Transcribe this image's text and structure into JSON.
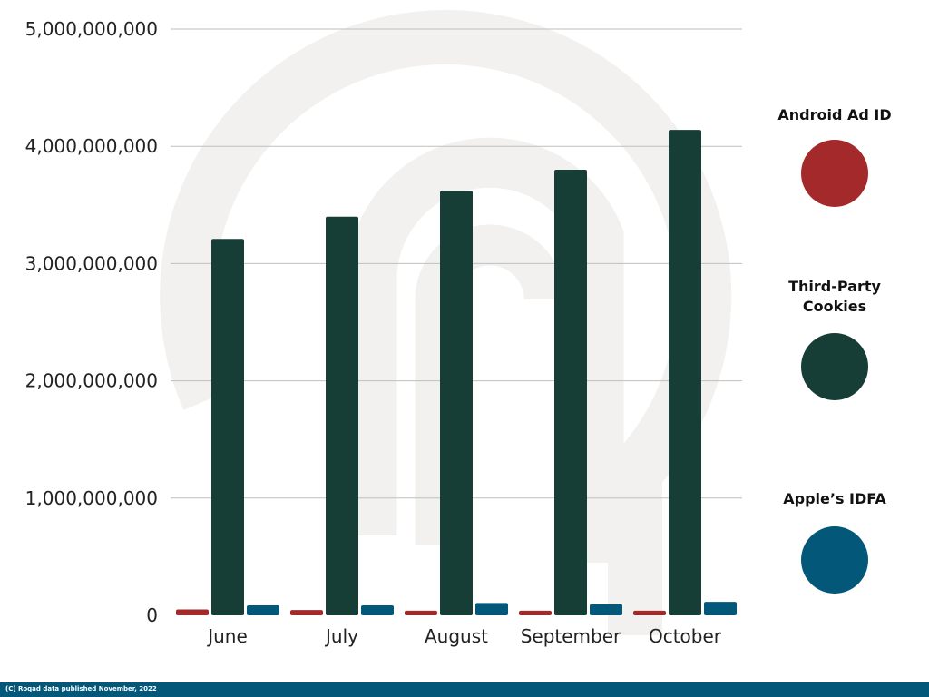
{
  "chart_data": {
    "type": "bar",
    "title": "",
    "xlabel": "",
    "ylabel": "",
    "ylim": [
      0,
      5000000000
    ],
    "yticks": [
      0,
      1000000000,
      2000000000,
      3000000000,
      4000000000,
      5000000000
    ],
    "ytick_labels": [
      "0",
      "1,000,000,000",
      "2,000,000,000",
      "3,000,000,000",
      "4,000,000,000",
      "5,000,000,000"
    ],
    "categories": [
      "June",
      "July",
      "August",
      "September",
      "October"
    ],
    "grid": true,
    "legend_position": "right",
    "series": [
      {
        "name": "Android Ad ID",
        "color": "#A3292B",
        "values": [
          50000000,
          45000000,
          40000000,
          40000000,
          40000000
        ]
      },
      {
        "name": "Third-Party Cookies",
        "color": "#163D36",
        "values": [
          3210000000,
          3400000000,
          3620000000,
          3800000000,
          4140000000
        ]
      },
      {
        "name": "Apple’s IDFA",
        "color": "#03587A",
        "values": [
          85000000,
          85000000,
          105000000,
          95000000,
          115000000
        ]
      }
    ]
  },
  "legend": {
    "android": {
      "label": "Android Ad ID",
      "color": "#A3292B"
    },
    "cookies": {
      "label": "Third-Party Cookies",
      "color": "#163D36"
    },
    "idfa": {
      "label": "Apple’s IDFA",
      "color": "#03587A"
    }
  },
  "footer": {
    "text": "(C) Roqad data published November, 2022",
    "color": "#03587A"
  }
}
